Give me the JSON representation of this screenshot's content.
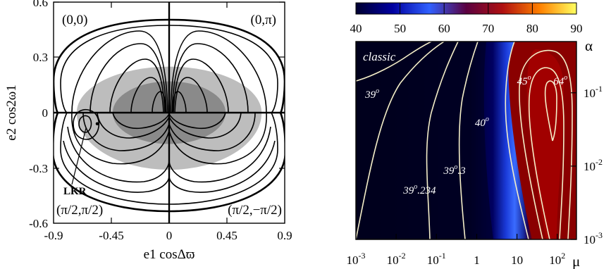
{
  "chart_data": [
    {
      "type": "line",
      "panel": "left",
      "xlabel": "e1 cosΔϖ",
      "ylabel": "e2 cos2ω1",
      "xlim": [
        -0.9,
        0.9
      ],
      "ylim": [
        -0.6,
        0.6
      ],
      "x_ticks": [
        "-0.9",
        "-0.45",
        "0",
        "0.45",
        "0.9"
      ],
      "y_ticks": [
        "0.6",
        "0.3",
        "0",
        "-0.3",
        "-0.6"
      ],
      "region_labels": {
        "top_left": "(0,0)",
        "top_right": "(0,π)",
        "bottom_left": "(π/2,π/2)",
        "bottom_right": "(π/2,−π/2)"
      },
      "annotation": "LKR",
      "annotation_point": [
        -0.56,
        -0.06
      ],
      "shaded_regions": [
        {
          "shade": "light gray",
          "x_half_width": 0.72,
          "y_upper": 0.25,
          "y_lower": -0.31
        },
        {
          "shade": "dark gray",
          "x_half_width": 0.44,
          "y_upper": 0.17,
          "y_lower": -0.17
        }
      ],
      "colors": {
        "outer": "#000000",
        "light_gray": "#bdbdbd",
        "dark_gray": "#8a8a8a"
      }
    },
    {
      "type": "heatmap",
      "panel": "right",
      "xlabel": "μ",
      "ylabel": "α",
      "x_scale": "log",
      "y_scale": "log",
      "x_range": [
        0.001,
        300
      ],
      "y_range": [
        0.001,
        0.5
      ],
      "x_ticks": [
        {
          "value": 0.001,
          "base": "10",
          "exp": "-3"
        },
        {
          "value": 0.01,
          "base": "10",
          "exp": "-2"
        },
        {
          "value": 0.1,
          "base": "10",
          "exp": "-1"
        },
        {
          "value": 1,
          "base": "1",
          "exp": ""
        },
        {
          "value": 10,
          "base": "10",
          "exp": ""
        },
        {
          "value": 100,
          "base": "10",
          "exp": "2"
        }
      ],
      "y_ticks": [
        {
          "value": 0.1,
          "base": "10",
          "exp": "-1"
        },
        {
          "value": 0.01,
          "base": "10",
          "exp": "-2"
        },
        {
          "value": 0.001,
          "base": "10",
          "exp": "-3"
        }
      ],
      "colorbar": {
        "range": [
          40,
          90
        ],
        "ticks": [
          "40",
          "50",
          "60",
          "70",
          "80",
          "90"
        ],
        "stops": [
          "#000030",
          "#0000a0",
          "#3060ff",
          "#5a0040",
          "#b01010",
          "#ff8000",
          "#ffff60"
        ]
      },
      "contours": [
        {
          "label_base": "39",
          "label_suffix": "",
          "label_pos": [
            0.0017,
            0.085
          ]
        },
        {
          "label_base": "39",
          "label_suffix": ".234",
          "label_pos": [
            0.015,
            0.0042
          ]
        },
        {
          "label_base": "39",
          "label_suffix": ".3",
          "label_pos": [
            0.15,
            0.0078
          ]
        },
        {
          "label_base": "40",
          "label_suffix": "",
          "label_pos": [
            0.9,
            0.035
          ]
        },
        {
          "label_base": "45",
          "label_suffix": "",
          "label_pos": [
            10,
            0.13
          ]
        },
        {
          "label_base": "64",
          "label_suffix": "",
          "label_pos": [
            80,
            0.13
          ]
        }
      ],
      "classic_label": "classic"
    }
  ]
}
